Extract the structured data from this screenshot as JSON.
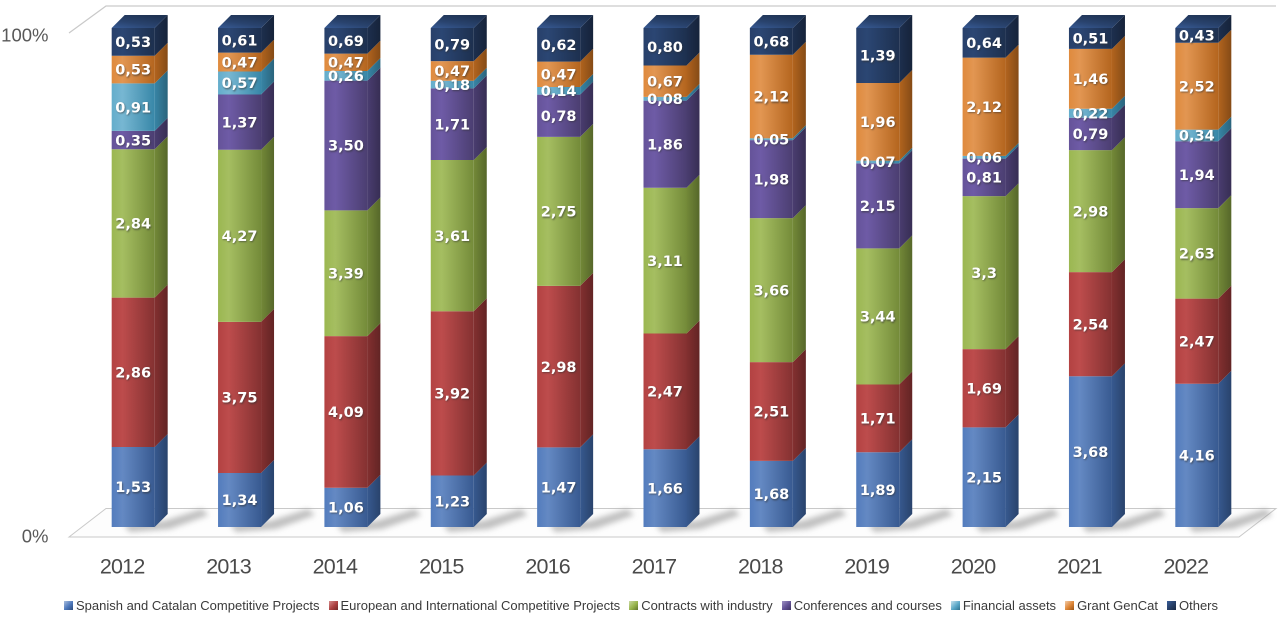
{
  "chart_data": {
    "type": "bar",
    "variant": "3d-100pct-stacked-column",
    "title": "",
    "categories": [
      "2012",
      "2013",
      "2014",
      "2015",
      "2016",
      "2017",
      "2018",
      "2019",
      "2020",
      "2021",
      "2022"
    ],
    "series": [
      {
        "name": "Spanish and Catalan Competitive Projects",
        "color": "#4b76ba",
        "values": [
          1.53,
          1.34,
          1.06,
          1.23,
          1.47,
          1.66,
          1.68,
          1.89,
          2.15,
          3.68,
          4.16
        ],
        "labels": [
          "1,53",
          "1,34",
          "1,06",
          "1,23",
          "1,47",
          "1,66",
          "1,68",
          "1,89",
          "2,15",
          "3,68",
          "4,16"
        ]
      },
      {
        "name": "European and International Competitive Projects",
        "color": "#ac3f3f",
        "values": [
          2.86,
          3.75,
          4.09,
          3.92,
          2.98,
          2.47,
          2.51,
          1.71,
          1.69,
          2.54,
          2.47
        ],
        "labels": [
          "2,86",
          "3,75",
          "4,09",
          "3,92",
          "2,98",
          "2,47",
          "2,51",
          "1,71",
          "1,69",
          "2,54",
          "2,47"
        ]
      },
      {
        "name": "Contracts with industry",
        "color": "#97b44a",
        "values": [
          2.84,
          4.27,
          3.39,
          3.61,
          2.75,
          3.11,
          3.66,
          3.44,
          3.3,
          2.98,
          2.63
        ],
        "labels": [
          "2,84",
          "4,27",
          "3,39",
          "3,61",
          "2,75",
          "3,11",
          "3,66",
          "3,44",
          "3,3",
          "2,98",
          "2,63"
        ]
      },
      {
        "name": "Conferences and courses",
        "color": "#615093",
        "values": [
          0.35,
          1.37,
          3.5,
          1.71,
          0.78,
          1.86,
          1.98,
          2.15,
          0.81,
          0.79,
          1.94
        ],
        "labels": [
          "0,35",
          "1,37",
          "3,50",
          "1,71",
          "0,78",
          "1,86",
          "1,98",
          "2,15",
          "0,81",
          "0,79",
          "1,94"
        ]
      },
      {
        "name": "Financial assets",
        "color": "#5ba8c8",
        "values": [
          0.91,
          0.57,
          0.26,
          0.18,
          0.14,
          0.08,
          0.05,
          0.07,
          0.06,
          0.22,
          0.34
        ],
        "labels": [
          "0,91",
          "0,57",
          "0,26",
          "0,18",
          "0,14",
          "0,08",
          "0,05",
          "0,07",
          "0,06",
          "0,22",
          "0,34"
        ]
      },
      {
        "name": "Grant GenCat",
        "color": "#dd8434",
        "values": [
          0.53,
          0.47,
          0.47,
          0.47,
          0.47,
          0.67,
          2.12,
          1.96,
          2.12,
          1.46,
          2.52
        ],
        "labels": [
          "0,53",
          "0,47",
          "0,47",
          "0,47",
          "0,47",
          "0,67",
          "2,12",
          "1,96",
          "2,12",
          "1,46",
          "2,52"
        ]
      },
      {
        "name": "Others",
        "color": "#263e66",
        "values": [
          0.53,
          0.61,
          0.69,
          0.79,
          0.62,
          0.8,
          0.68,
          1.39,
          0.64,
          0.51,
          0.43
        ],
        "labels": [
          "0,53",
          "0,61",
          "0,69",
          "0,79",
          "0,62",
          "0,80",
          "0,68",
          "1,39",
          "0,64",
          "0,51",
          "0,43"
        ]
      }
    ],
    "ylabels": {
      "top": "100%",
      "bottom": "0%"
    },
    "legend_position": "bottom",
    "grid": false
  }
}
